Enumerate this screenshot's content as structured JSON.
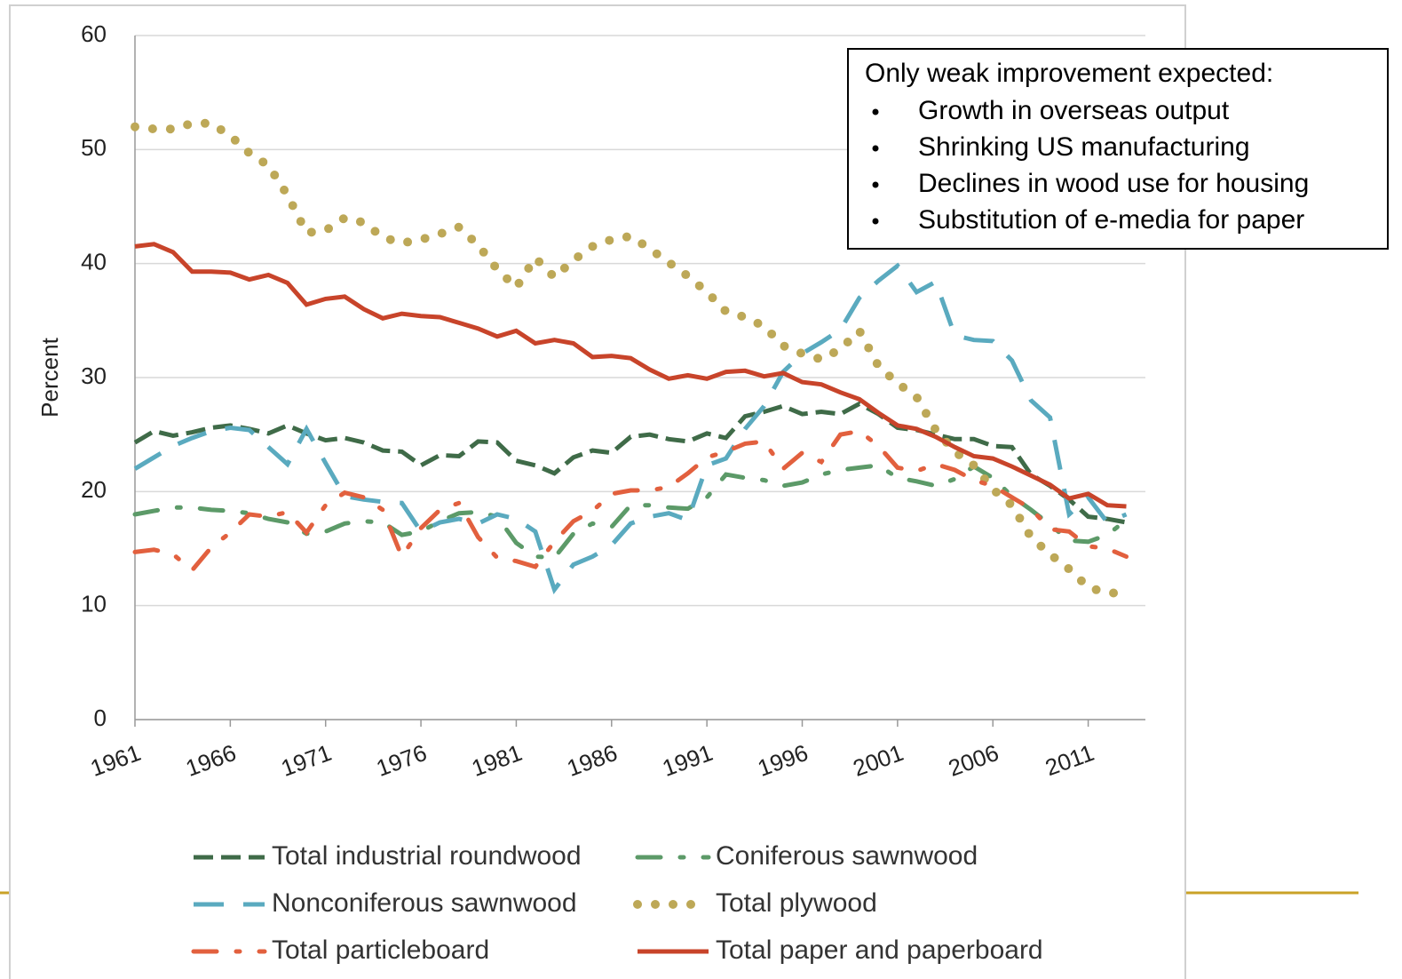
{
  "chart_data": {
    "type": "line",
    "y_label": "Percent",
    "x": [
      1961,
      1962,
      1963,
      1964,
      1965,
      1966,
      1967,
      1968,
      1969,
      1970,
      1971,
      1972,
      1973,
      1974,
      1975,
      1976,
      1977,
      1978,
      1979,
      1980,
      1981,
      1982,
      1983,
      1984,
      1985,
      1986,
      1987,
      1988,
      1989,
      1990,
      1991,
      1992,
      1993,
      1994,
      1995,
      1996,
      1997,
      1998,
      1999,
      2000,
      2001,
      2002,
      2003,
      2004,
      2005,
      2006,
      2007,
      2008,
      2009,
      2010,
      2011,
      2012,
      2013
    ],
    "xlim": [
      1961,
      2014
    ],
    "xticks": [
      1961,
      1966,
      1971,
      1976,
      1981,
      1986,
      1991,
      1996,
      2001,
      2006,
      2011
    ],
    "ylim": [
      0,
      60
    ],
    "yticks": [
      0,
      10,
      20,
      30,
      40,
      50,
      60
    ],
    "grid": true,
    "series": [
      {
        "name": "Total industrial roundwood",
        "color": "#3f6b48",
        "line_style": "dashed",
        "values": [
          24.3,
          25.3,
          24.9,
          25.2,
          25.6,
          25.8,
          25.5,
          25.1,
          25.8,
          25.1,
          24.5,
          24.7,
          24.3,
          23.6,
          23.5,
          22.3,
          23.2,
          23.1,
          24.4,
          24.3,
          22.7,
          22.3,
          21.6,
          23,
          23.6,
          23.4,
          24.8,
          25,
          24.6,
          24.4,
          25.1,
          24.7,
          26.6,
          27,
          27.5,
          26.8,
          27,
          26.8,
          27.7,
          26.8,
          25.6,
          25.4,
          25,
          24.6,
          24.6,
          24,
          23.9,
          21.5,
          20.5,
          19.3,
          17.8,
          17.6,
          17.3
        ]
      },
      {
        "name": "Coniferous sawnwood",
        "color": "#5c9a68",
        "line_style": "dash-dot",
        "values": [
          18,
          18.3,
          18.6,
          18.6,
          18.4,
          18.3,
          18.1,
          17.6,
          17.3,
          16.3,
          16.5,
          17.2,
          17.4,
          17.3,
          16.2,
          16.5,
          17.4,
          18.1,
          18.2,
          17.8,
          15.5,
          14.3,
          14.2,
          16.3,
          17.2,
          16.9,
          18.8,
          18.8,
          18.6,
          18.5,
          19.5,
          21.5,
          21.2,
          21,
          20.5,
          20.8,
          21.5,
          21.9,
          22.1,
          22.3,
          21.2,
          20.9,
          20.5,
          21.1,
          22.2,
          21.2,
          19.6,
          18.4,
          17.1,
          15.7,
          15.6,
          16.2,
          17.5
        ]
      },
      {
        "name": "Nonconiferous sawnwood",
        "color": "#5aaabf",
        "line_style": "long-dash",
        "values": [
          22,
          23,
          24,
          24.7,
          25.3,
          25.6,
          25.4,
          23.9,
          22.4,
          25.5,
          22.5,
          19.6,
          19.3,
          19.1,
          19,
          16.5,
          17.3,
          17.6,
          17.2,
          18,
          17.6,
          16.5,
          11.4,
          13.6,
          14.3,
          15.3,
          17.2,
          17.8,
          18.1,
          17.5,
          22.3,
          22.9,
          25.5,
          27.5,
          30.5,
          32.1,
          33.1,
          34.2,
          37,
          38.5,
          39.8,
          37.5,
          38.4,
          33.7,
          33.3,
          33.2,
          31.5,
          28,
          26.5,
          18,
          19.5,
          17.3,
          18
        ]
      },
      {
        "name": "Total plywood",
        "color": "#bda857",
        "line_style": "dotted",
        "values": [
          52,
          51.8,
          51.8,
          52.3,
          52.3,
          51.2,
          49.7,
          48.6,
          46,
          42.7,
          42.9,
          44,
          43.6,
          42.3,
          41.8,
          42.1,
          42.6,
          43.2,
          41.6,
          39.5,
          37.9,
          40.5,
          38.8,
          40.3,
          41.5,
          42.1,
          42.4,
          41.3,
          40.1,
          38.9,
          37.5,
          35.8,
          35.3,
          34.5,
          32.8,
          32.1,
          31.6,
          32.5,
          34.1,
          31,
          29.5,
          28.3,
          25.4,
          23.5,
          22.3,
          20.2,
          18.8,
          16,
          14.5,
          13.2,
          11.6,
          11.1,
          11.1
        ]
      },
      {
        "name": "Total particleboard",
        "color": "#e2603e",
        "line_style": "dash-dot",
        "values": [
          14.7,
          14.9,
          14.5,
          13.1,
          15.1,
          16.4,
          18,
          17.8,
          18.2,
          16.4,
          18.8,
          19.9,
          19.5,
          18.4,
          14.3,
          16.8,
          18.4,
          19,
          16,
          14.2,
          13.9,
          13.4,
          15.6,
          17.4,
          18.3,
          19.8,
          20.1,
          20.1,
          20.4,
          21.6,
          23,
          23.5,
          24.2,
          24.4,
          22,
          23.4,
          22.6,
          25,
          25.3,
          24,
          22.1,
          21.8,
          22.4,
          21.9,
          21,
          20.5,
          19.5,
          18.5,
          16.7,
          16.5,
          15.2,
          15,
          14.3
        ]
      },
      {
        "name": "Total paper and paperboard",
        "color": "#c8442a",
        "line_style": "solid",
        "values": [
          41.5,
          41.7,
          41,
          39.3,
          39.3,
          39.2,
          38.6,
          39,
          38.3,
          36.4,
          36.9,
          37.1,
          36,
          35.2,
          35.6,
          35.4,
          35.3,
          34.8,
          34.3,
          33.6,
          34.1,
          33,
          33.3,
          33,
          31.8,
          31.9,
          31.7,
          30.7,
          29.9,
          30.2,
          29.9,
          30.5,
          30.6,
          30.1,
          30.4,
          29.6,
          29.4,
          28.7,
          28.1,
          26.9,
          25.8,
          25.5,
          24.8,
          23.9,
          23.1,
          22.9,
          22.2,
          21.4,
          20.6,
          19.4,
          19.8,
          18.8,
          18.7
        ]
      }
    ],
    "annotation": {
      "heading": "Only weak improvement expected:",
      "items": [
        "Growth in overseas output",
        "Shrinking US manufacturing",
        "Declines in wood use for housing",
        "Substitution of e-media for paper"
      ]
    }
  }
}
